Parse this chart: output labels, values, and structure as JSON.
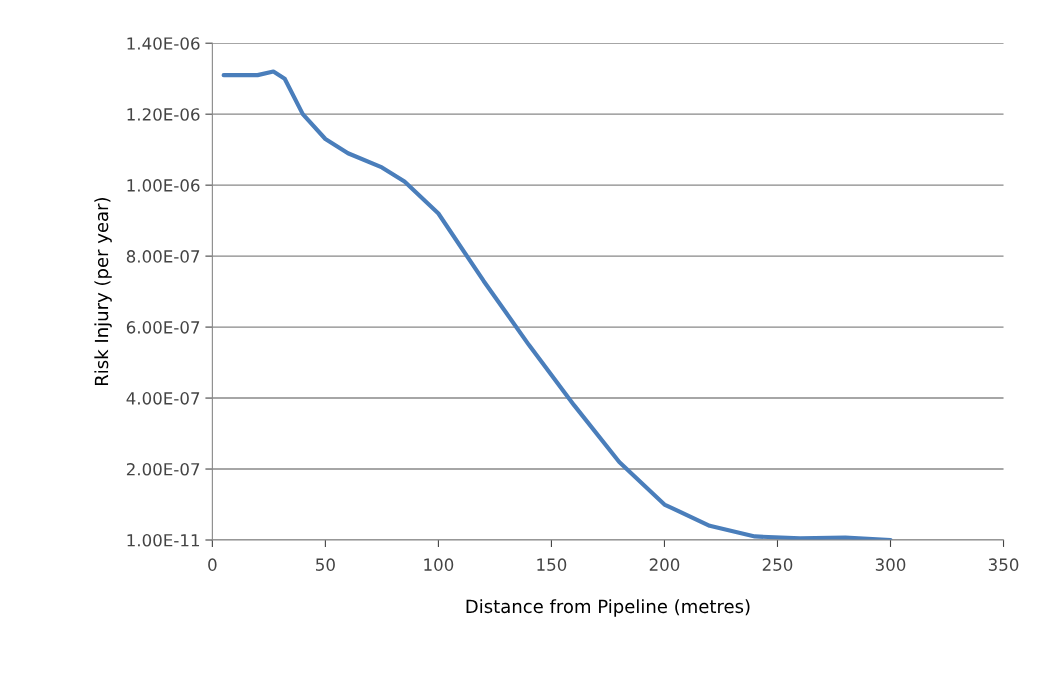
{
  "chart_data": {
    "type": "line",
    "xlabel": "Distance from Pipeline (metres)",
    "ylabel": "Risk Injury (per year)",
    "x": [
      5,
      20,
      27,
      32,
      40,
      50,
      60,
      75,
      85,
      100,
      120,
      140,
      160,
      180,
      200,
      220,
      240,
      260,
      280,
      300
    ],
    "series": [
      {
        "color": "#4a7ebb",
        "values": [
          1.31e-06,
          1.31e-06,
          1.32e-06,
          1.3e-06,
          1.2e-06,
          1.13e-06,
          1.09e-06,
          1.05e-06,
          1.01e-06,
          9.2e-07,
          7.3e-07,
          5.5e-07,
          3.8e-07,
          2.2e-07,
          1e-07,
          4e-08,
          1e-08,
          5e-09,
          7e-09,
          1e-11
        ]
      }
    ],
    "xlim": [
      0,
      350
    ],
    "xticks": [
      0,
      50,
      100,
      150,
      200,
      250,
      300,
      350
    ],
    "ylim": [
      1e-11,
      1.4e-06
    ],
    "yticks": [
      {
        "value": 1e-11,
        "label": "1.00E-11"
      },
      {
        "value": 2e-07,
        "label": "2.00E-07"
      },
      {
        "value": 4e-07,
        "label": "4.00E-07"
      },
      {
        "value": 6e-07,
        "label": "6.00E-07"
      },
      {
        "value": 8e-07,
        "label": "8.00E-07"
      },
      {
        "value": 1e-06,
        "label": "1.00E-06"
      },
      {
        "value": 1.2e-06,
        "label": "1.20E-06"
      },
      {
        "value": 1.4e-06,
        "label": "1.40E-06"
      }
    ],
    "grid": "y",
    "legend": false,
    "marker": "none",
    "line_style": "solid"
  }
}
